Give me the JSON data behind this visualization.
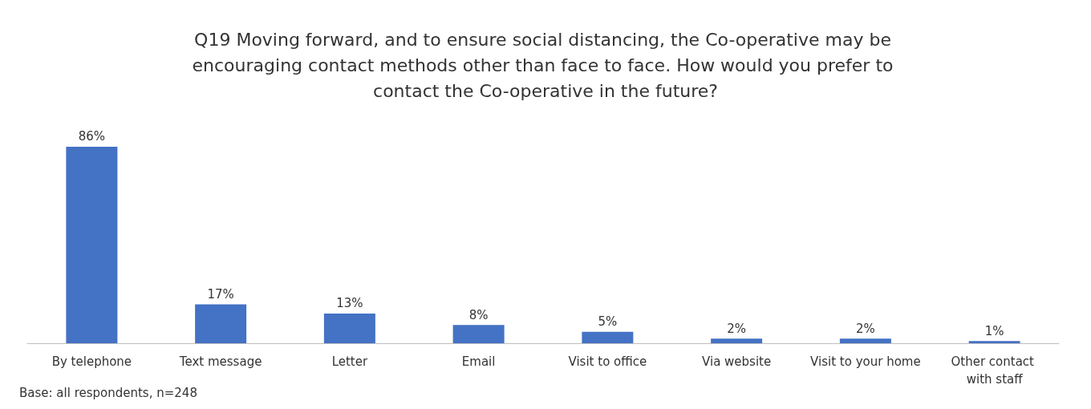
{
  "chart_data": {
    "type": "bar",
    "title": "Q19 Moving forward, and to ensure social distancing, the Co-operative may be encouraging contact methods other than face to face. How would you prefer to contact the Co-operative in the future?",
    "categories": [
      "By telephone",
      "Text message",
      "Letter",
      "Email",
      "Visit to office",
      "Via website",
      "Visit to your home",
      "Other contact with staff"
    ],
    "values": [
      86,
      17,
      13,
      8,
      5,
      2,
      2,
      1
    ],
    "value_labels": [
      "86%",
      "17%",
      "13%",
      "8%",
      "5%",
      "2%",
      "2%",
      "1%"
    ],
    "color": "#4472c4",
    "annotations": [
      "Base: all respondents, n=248"
    ]
  }
}
